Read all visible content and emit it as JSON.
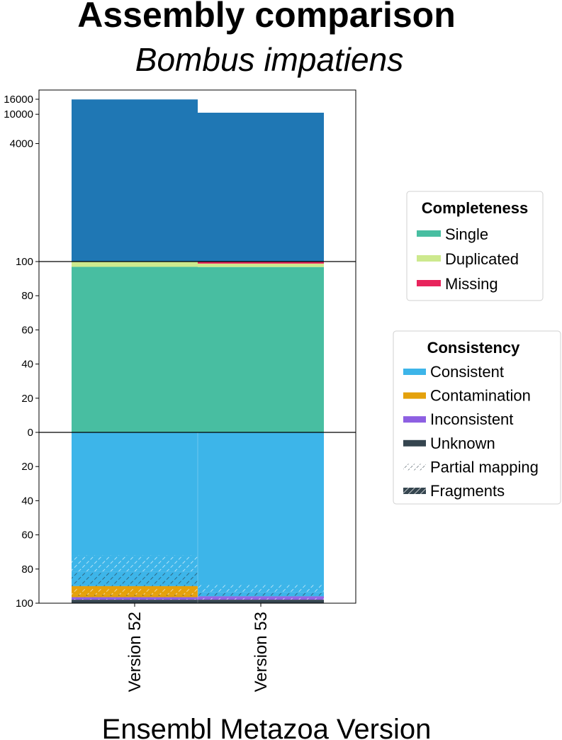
{
  "chart_data": {
    "type": "bar",
    "title": "Assembly comparison",
    "subtitle": "Bombus impatiens",
    "xlabel": "Ensembl Metazoa Version",
    "categories": [
      "Version 52",
      "Version 53"
    ],
    "gene_counts": {
      "ticks": [
        "4000",
        "10000",
        "16000"
      ],
      "values": [
        15900,
        10500
      ]
    },
    "completeness": {
      "ticks": [
        "0",
        "20",
        "40",
        "60",
        "80",
        "100"
      ],
      "ylim": [
        0,
        100
      ],
      "series": [
        {
          "name": "Single",
          "color": "#48bea1",
          "values": [
            96.9,
            96.8
          ]
        },
        {
          "name": "Duplicated",
          "color": "#cde98e",
          "values": [
            3.0,
            2.0
          ]
        },
        {
          "name": "Missing",
          "color": "#e8245c",
          "values": [
            0.1,
            1.2
          ]
        }
      ]
    },
    "consistency": {
      "ticks": [
        "0",
        "20",
        "40",
        "60",
        "80",
        "100"
      ],
      "ylim": [
        0,
        100
      ],
      "series": [
        {
          "name": "Consistent",
          "color": "#3db5e9",
          "values": [
            72,
            89
          ]
        },
        {
          "name": "Consistent partial mapping",
          "color": "#3db5e9",
          "hatch": "partial",
          "values": [
            9.5,
            4.5
          ]
        },
        {
          "name": "Consistent fragments",
          "color": "#3db5e9",
          "hatch": "fragments",
          "values": [
            8.5,
            2.5
          ]
        },
        {
          "name": "Contamination",
          "color": "#e4a10b",
          "values": [
            1.5,
            0
          ]
        },
        {
          "name": "Contamination partial mapping",
          "color": "#e4a10b",
          "hatch": "partial",
          "values": [
            3.5,
            0
          ]
        },
        {
          "name": "Contamination fragments",
          "color": "#e4a10b",
          "hatch": "fragments",
          "values": [
            1.5,
            0
          ]
        },
        {
          "name": "Inconsistent",
          "color": "#8d5fe2",
          "values": [
            1.0,
            1.0
          ]
        },
        {
          "name": "Inconsistent partial mapping",
          "color": "#8d5fe2",
          "hatch": "partial",
          "values": [
            0.5,
            1.0
          ]
        },
        {
          "name": "Unknown",
          "color": "#35454f",
          "values": [
            2.0,
            2.0
          ]
        }
      ]
    },
    "legends": {
      "completeness": {
        "title": "Completeness",
        "items": [
          {
            "label": "Single",
            "color": "#48bea1"
          },
          {
            "label": "Duplicated",
            "color": "#cde98e"
          },
          {
            "label": "Missing",
            "color": "#e8245c"
          }
        ]
      },
      "consistency": {
        "title": "Consistency",
        "items": [
          {
            "label": "Consistent",
            "color": "#3db5e9",
            "style": "solid"
          },
          {
            "label": "Contamination",
            "color": "#e4a10b",
            "style": "solid"
          },
          {
            "label": "Inconsistent",
            "color": "#8d5fe2",
            "style": "solid"
          },
          {
            "label": "Unknown",
            "color": "#35454f",
            "style": "solid"
          },
          {
            "label": "Partial mapping",
            "color": "#35454f",
            "style": "partial"
          },
          {
            "label": "Fragments",
            "color": "#35454f",
            "style": "fragments"
          }
        ]
      }
    },
    "gene_bar_color": "#1f77b4"
  }
}
